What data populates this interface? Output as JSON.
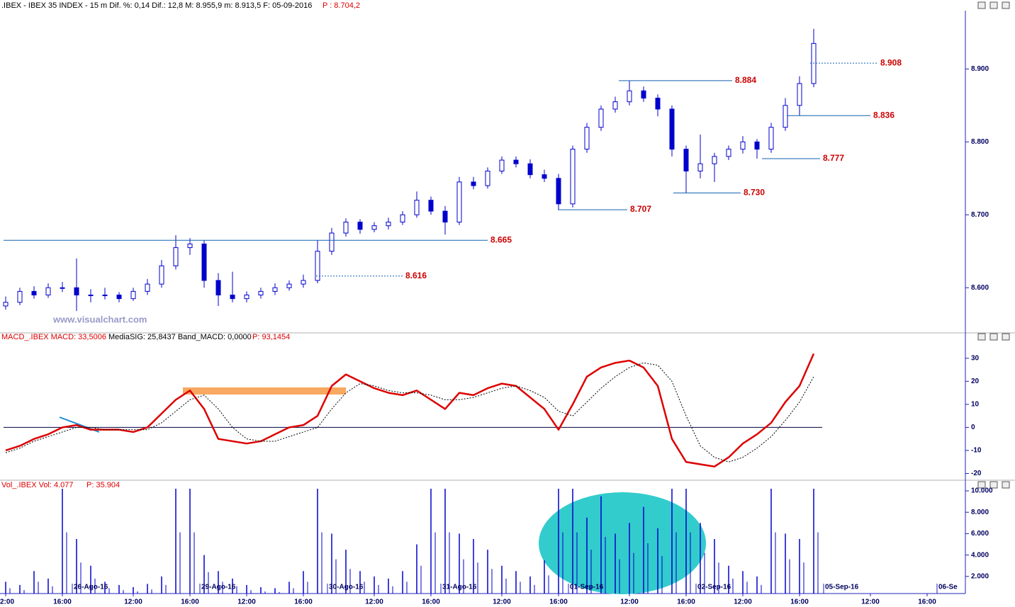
{
  "chart_data": [
    {
      "type": "candlestick",
      "header": ".IBEX - IBEX 35 INDEX - 15 m  Dif. %: 0,14  Dif.: 12,8  M: 8.955,9  m: 8.913,5  F: 05-09-2016",
      "header_price": "P : 8.704,2",
      "watermark": "www.visualchart.com",
      "color": "#0000cc",
      "categories": [
        "2:00",
        null,
        null,
        null,
        "16:00",
        null,
        null,
        null,
        null,
        "12:00",
        null,
        null,
        null,
        "16:00",
        null,
        null,
        null,
        "12:00",
        null,
        null,
        null,
        "16:00",
        null,
        null,
        null,
        null,
        "12:00",
        null,
        null,
        null,
        "16:00",
        null,
        null,
        null,
        null,
        "12:00",
        null,
        null,
        null,
        "16:00",
        null,
        null,
        null,
        null,
        "12:00",
        null,
        null,
        null,
        "16:00",
        null,
        null,
        null,
        "12:00",
        null,
        null,
        null,
        "16:00",
        null,
        null,
        null,
        null,
        "12:00",
        null,
        null,
        null,
        "16:00",
        null,
        null
      ],
      "date_labels": [
        null,
        null,
        null,
        null,
        null,
        null,
        "26-Ago-16",
        null,
        null,
        null,
        null,
        null,
        null,
        null,
        null,
        "29-Ago-16",
        null,
        null,
        null,
        null,
        null,
        null,
        null,
        null,
        "30-Ago-16",
        null,
        null,
        null,
        null,
        null,
        null,
        null,
        "31-Ago-16",
        null,
        null,
        null,
        null,
        null,
        null,
        null,
        null,
        "01-Sep-16",
        null,
        null,
        null,
        null,
        null,
        null,
        null,
        null,
        "02-Sep-16",
        null,
        null,
        null,
        null,
        null,
        null,
        null,
        null,
        "05-Sep-16",
        null,
        null,
        null,
        null,
        null,
        null,
        null,
        "06-Se"
      ],
      "open": [
        8575,
        8580,
        8595,
        8590,
        8600,
        8600,
        8590,
        8590,
        8590,
        8585,
        8595,
        8605,
        8630,
        8655,
        8660,
        8610,
        8590,
        8585,
        8590,
        8595,
        8600,
        8605,
        8610,
        8650,
        8675,
        8690,
        8680,
        8685,
        8690,
        8700,
        8720,
        8705,
        8690,
        8745,
        8740,
        8760,
        8775,
        8770,
        8755,
        8750,
        8715,
        8790,
        8820,
        8845,
        8855,
        8870,
        8860,
        8845,
        8790,
        8760,
        8770,
        8780,
        8790,
        8800,
        8790,
        8820,
        8850,
        8880,
        null,
        null,
        null,
        null,
        null,
        null,
        null,
        null,
        null,
        null
      ],
      "high": [
        8588,
        8600,
        8602,
        8606,
        8608,
        8640,
        8598,
        8600,
        8594,
        8600,
        8612,
        8638,
        8672,
        8668,
        8665,
        8620,
        8622,
        8595,
        8600,
        8606,
        8610,
        8618,
        8665,
        8682,
        8695,
        8694,
        8690,
        8696,
        8705,
        8732,
        8725,
        8712,
        8752,
        8752,
        8765,
        8780,
        8780,
        8776,
        8762,
        8756,
        8795,
        8826,
        8850,
        8862,
        8884,
        8876,
        8865,
        8850,
        8795,
        8810,
        8785,
        8795,
        8808,
        8804,
        8826,
        8860,
        8890,
        8955,
        null,
        null,
        null,
        null,
        null,
        null,
        null,
        null,
        null,
        null
      ],
      "low": [
        8570,
        8576,
        8585,
        8586,
        8594,
        8568,
        8580,
        8584,
        8580,
        8582,
        8590,
        8600,
        8625,
        8645,
        8600,
        8575,
        8580,
        8580,
        8585,
        8590,
        8596,
        8600,
        8606,
        8645,
        8670,
        8674,
        8676,
        8680,
        8686,
        8696,
        8700,
        8673,
        8686,
        8735,
        8736,
        8756,
        8765,
        8750,
        8745,
        8707,
        8710,
        8785,
        8815,
        8840,
        8850,
        8855,
        8835,
        8780,
        8730,
        8750,
        8745,
        8775,
        8784,
        8777,
        8785,
        8815,
        8836,
        8875,
        null,
        null,
        null,
        null,
        null,
        null,
        null,
        null,
        null,
        null
      ],
      "close": [
        8580,
        8595,
        8590,
        8600,
        8600,
        8590,
        8590,
        8590,
        8585,
        8595,
        8605,
        8630,
        8655,
        8660,
        8610,
        8590,
        8585,
        8590,
        8595,
        8600,
        8605,
        8610,
        8650,
        8675,
        8690,
        8680,
        8685,
        8690,
        8700,
        8720,
        8705,
        8690,
        8745,
        8740,
        8760,
        8775,
        8770,
        8755,
        8750,
        8715,
        8790,
        8820,
        8845,
        8855,
        8870,
        8860,
        8845,
        8790,
        8760,
        8770,
        8780,
        8790,
        8800,
        8790,
        8820,
        8850,
        8880,
        8935,
        null,
        null,
        null,
        null,
        null,
        null,
        null,
        null,
        null,
        null
      ],
      "ylim": [
        8540,
        8980
      ],
      "yticks": [
        {
          "value": 8600,
          "label": "8.600"
        },
        {
          "value": 8700,
          "label": "8.700"
        },
        {
          "value": 8800,
          "label": "8.800"
        },
        {
          "value": 8900,
          "label": "8.900"
        }
      ],
      "levels": [
        {
          "value": 8908,
          "label": "8.908",
          "dashed": true
        },
        {
          "value": 8884,
          "label": "8.884",
          "dashed": false
        },
        {
          "value": 8836,
          "label": "8.836",
          "dashed": false
        },
        {
          "value": 8777,
          "label": "8.777",
          "dashed": false
        },
        {
          "value": 8730,
          "label": "8.730",
          "dashed": false
        },
        {
          "value": 8707,
          "label": "8.707",
          "dashed": false
        },
        {
          "value": 8665,
          "label": "8.665",
          "dashed": false
        },
        {
          "value": 8616,
          "label": "8.616",
          "dashed": true
        }
      ],
      "level_color": "#1060b0",
      "level_label_color": "#cc0000"
    },
    {
      "type": "line",
      "header": "MACD_.IBEX MACD: 33,5006",
      "header_extra": "MediaSIG: 25,8437  Band_MACD: 0,0000",
      "header_price": "P: 93,1454",
      "series": [
        {
          "color": "#dd0000",
          "dashed": false,
          "values": [
            -10,
            -8,
            -5,
            -3,
            0,
            1,
            -1,
            -1,
            -1,
            -2,
            0,
            6,
            12,
            16,
            8,
            -5,
            -6,
            -7,
            -6,
            -3,
            0,
            1,
            5,
            18,
            23,
            20,
            17,
            15,
            14,
            16,
            12,
            8,
            15,
            14,
            17,
            19,
            18,
            13,
            8,
            -1,
            10,
            22,
            26,
            28,
            29,
            26,
            18,
            -5,
            -15,
            -16,
            -17,
            -13,
            -7,
            -3,
            2,
            11,
            18,
            32,
            null,
            null,
            null,
            null,
            null,
            null,
            null,
            null,
            null,
            null
          ]
        },
        {
          "color": "#000000",
          "dashed": true,
          "values": [
            -11,
            -9,
            -6,
            -4,
            -2,
            0,
            0,
            -1,
            -1,
            -1,
            -1,
            2,
            7,
            12,
            14,
            8,
            0,
            -5,
            -6,
            -6,
            -4,
            -2,
            0,
            8,
            15,
            19,
            18,
            16,
            15,
            15,
            14,
            12,
            12,
            13,
            15,
            17,
            18,
            16,
            13,
            7,
            5,
            11,
            17,
            22,
            26,
            28,
            27,
            20,
            5,
            -8,
            -13,
            -15,
            -13,
            -9,
            -4,
            3,
            11,
            22,
            null,
            null,
            null,
            null,
            null,
            null,
            null,
            null,
            null,
            null
          ]
        }
      ],
      "zero_line": true,
      "ylim": [
        -22,
        36.4
      ],
      "yticks": [
        -20,
        -10,
        0,
        10,
        20,
        30
      ]
    },
    {
      "type": "bar",
      "header": "Vol_.IBEX Vol: 4.077",
      "header_price": "P: 35.904",
      "color": "#0000cc",
      "values": [
        1500,
        1200,
        2500,
        1800,
        10200,
        5500,
        3000,
        1500,
        1200,
        1000,
        1300,
        2000,
        10200,
        10200,
        4000,
        2500,
        1800,
        1200,
        1000,
        900,
        1500,
        2500,
        10200,
        6000,
        4500,
        2500,
        2000,
        1800,
        2500,
        5000,
        10200,
        10200,
        6000,
        5500,
        4500,
        3000,
        2500,
        2000,
        3500,
        10200,
        10200,
        7500,
        9500,
        6000,
        7000,
        8500,
        6500,
        10200,
        10200,
        7000,
        5500,
        3000,
        2500,
        2000,
        10200,
        6000,
        5500,
        10200,
        null,
        null,
        null,
        null,
        null,
        null,
        null,
        null,
        null,
        null
      ],
      "ylim": [
        400,
        10200
      ],
      "yticks": [
        {
          "value": 2000,
          "label": "2.000"
        },
        {
          "value": 4000,
          "label": "4.000"
        },
        {
          "value": 6000,
          "label": "6.000"
        },
        {
          "value": 8000,
          "label": "8.000"
        },
        {
          "value": 10000,
          "label": "10.000"
        }
      ]
    }
  ]
}
